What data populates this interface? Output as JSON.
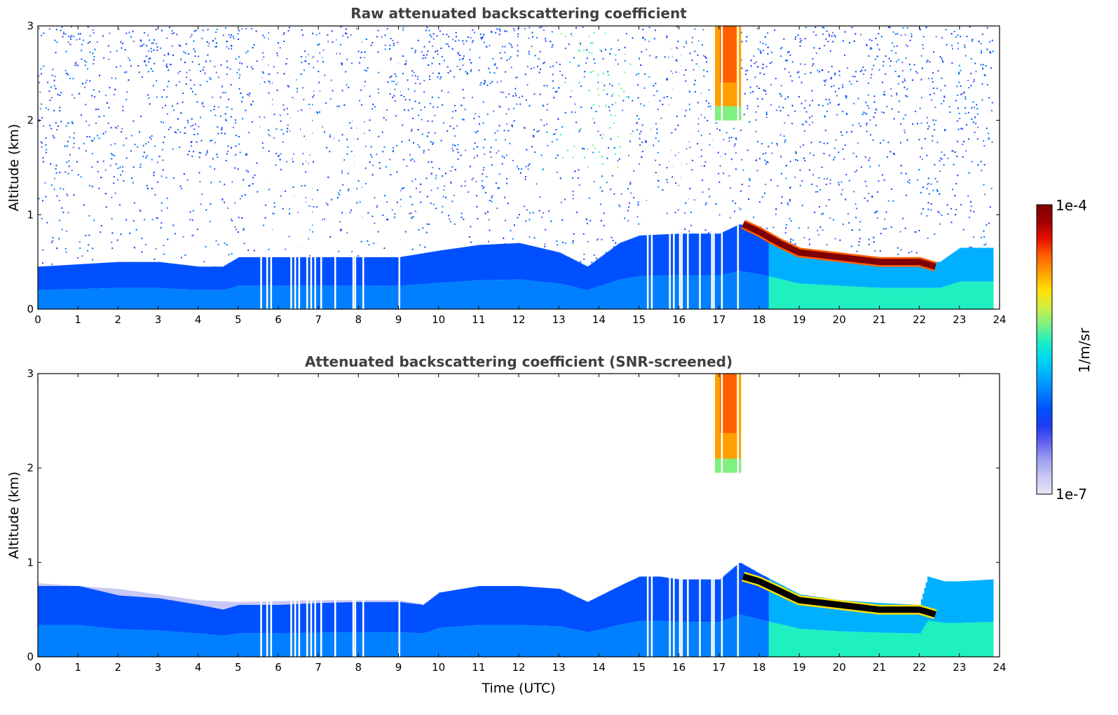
{
  "chart_data": [
    {
      "type": "heatmap",
      "title": "Raw attenuated backscattering coefficient",
      "xlabel": "",
      "ylabel": "Altitude (km)",
      "xlim": [
        0,
        24
      ],
      "ylim": [
        0,
        3
      ],
      "x_ticks": [
        "0",
        "1",
        "2",
        "3",
        "4",
        "5",
        "6",
        "7",
        "8",
        "9",
        "10",
        "11",
        "12",
        "13",
        "14",
        "15",
        "16",
        "17",
        "18",
        "19",
        "20",
        "21",
        "22",
        "23",
        "24"
      ],
      "y_ticks": [
        "0",
        "1",
        "2",
        "3"
      ],
      "boundary_layer_top_km": [
        [
          0,
          0.45
        ],
        [
          2,
          0.5
        ],
        [
          3,
          0.5
        ],
        [
          4,
          0.45
        ],
        [
          4.6,
          0.45
        ],
        [
          5,
          0.55
        ],
        [
          6,
          0.55
        ],
        [
          7,
          0.55
        ],
        [
          8,
          0.55
        ],
        [
          9,
          0.55
        ],
        [
          10,
          0.62
        ],
        [
          11,
          0.68
        ],
        [
          12,
          0.7
        ],
        [
          13,
          0.6
        ],
        [
          13.7,
          0.45
        ],
        [
          14.5,
          0.7
        ],
        [
          15,
          0.78
        ],
        [
          16,
          0.8
        ],
        [
          17,
          0.8
        ],
        [
          17.5,
          0.9
        ],
        [
          18,
          0.82
        ],
        [
          19,
          0.6
        ],
        [
          20,
          0.55
        ],
        [
          21,
          0.5
        ],
        [
          22,
          0.5
        ],
        [
          22.5,
          0.5
        ],
        [
          23,
          0.65
        ],
        [
          23.8,
          0.65
        ]
      ],
      "cloud_layer_km": [
        [
          17.6,
          0.9
        ],
        [
          18,
          0.82
        ],
        [
          18.5,
          0.7
        ],
        [
          19,
          0.6
        ],
        [
          20,
          0.55
        ],
        [
          21,
          0.5
        ],
        [
          22,
          0.5
        ],
        [
          22.4,
          0.45
        ]
      ],
      "aloft_cloud": {
        "x_start": 16.9,
        "x_end": 17.55,
        "y_from": 2.0,
        "y_to": 3.0
      },
      "data_gaps_hours": [
        5.55,
        5.7,
        5.8,
        6.3,
        6.4,
        6.5,
        6.7,
        6.8,
        6.9,
        7.05,
        7.4,
        7.85,
        7.9,
        8.1,
        9.0,
        15.2,
        15.3,
        15.75,
        15.85,
        16.0,
        16.05,
        16.2,
        16.5,
        16.8,
        16.85,
        17.05,
        17.45
      ]
    },
    {
      "type": "heatmap",
      "title": "Attenuated backscattering coefficient (SNR-screened)",
      "xlabel": "Time (UTC)",
      "ylabel": "Altitude (km)",
      "xlim": [
        0,
        24
      ],
      "ylim": [
        0,
        3
      ],
      "x_ticks": [
        "0",
        "1",
        "2",
        "3",
        "4",
        "5",
        "6",
        "7",
        "8",
        "9",
        "10",
        "11",
        "12",
        "13",
        "14",
        "15",
        "16",
        "17",
        "18",
        "19",
        "20",
        "21",
        "22",
        "23",
        "24"
      ],
      "y_ticks": [
        "0",
        "1",
        "2",
        "3"
      ],
      "boundary_layer_top_km": [
        [
          0,
          0.75
        ],
        [
          1,
          0.75
        ],
        [
          2,
          0.65
        ],
        [
          3,
          0.62
        ],
        [
          4,
          0.55
        ],
        [
          4.6,
          0.5
        ],
        [
          5,
          0.55
        ],
        [
          6,
          0.55
        ],
        [
          7,
          0.57
        ],
        [
          8,
          0.58
        ],
        [
          9,
          0.58
        ],
        [
          9.6,
          0.55
        ],
        [
          10,
          0.68
        ],
        [
          11,
          0.75
        ],
        [
          12,
          0.75
        ],
        [
          13,
          0.72
        ],
        [
          13.7,
          0.58
        ],
        [
          14.5,
          0.75
        ],
        [
          15,
          0.85
        ],
        [
          15.5,
          0.85
        ],
        [
          16,
          0.82
        ],
        [
          17,
          0.82
        ],
        [
          17.5,
          1.0
        ],
        [
          18,
          0.88
        ],
        [
          19,
          0.66
        ],
        [
          20,
          0.6
        ],
        [
          21,
          0.57
        ],
        [
          22,
          0.55
        ],
        [
          22.2,
          0.85
        ],
        [
          22.6,
          0.8
        ],
        [
          23,
          0.8
        ],
        [
          23.8,
          0.82
        ]
      ],
      "screened_layer_top_km": [
        [
          0,
          0.78
        ],
        [
          2,
          0.72
        ],
        [
          4,
          0.6
        ],
        [
          5,
          0.58
        ],
        [
          7,
          0.6
        ],
        [
          9,
          0.6
        ],
        [
          9.6,
          0.56
        ]
      ],
      "cloud_layer_km": [
        [
          17.6,
          0.85
        ],
        [
          18,
          0.8
        ],
        [
          18.5,
          0.7
        ],
        [
          19,
          0.6
        ],
        [
          20,
          0.55
        ],
        [
          21,
          0.5
        ],
        [
          22,
          0.5
        ],
        [
          22.4,
          0.45
        ]
      ],
      "aloft_cloud": {
        "x_start": 16.9,
        "x_end": 17.55,
        "y_from": 1.95,
        "y_to": 3.0
      },
      "data_gaps_hours": [
        5.55,
        5.7,
        5.8,
        6.3,
        6.4,
        6.5,
        6.7,
        6.8,
        6.9,
        7.05,
        7.4,
        7.85,
        7.9,
        8.1,
        9.0,
        15.2,
        15.3,
        15.75,
        15.85,
        16.0,
        16.05,
        16.2,
        16.5,
        16.8,
        16.85,
        17.05,
        17.45
      ]
    }
  ],
  "colorbar": {
    "label": "1/m/sr",
    "max_label": "1e-4",
    "min_label": "1e-7",
    "scale": "log",
    "colors": [
      "#e6e6f8",
      "#c8c8f5",
      "#a0a0f0",
      "#6464f0",
      "#1e3cf0",
      "#0050ff",
      "#0080ff",
      "#00b0ff",
      "#00d8f0",
      "#20f0c0",
      "#80f080",
      "#d0f040",
      "#ffe000",
      "#ffa000",
      "#ff6000",
      "#e81000",
      "#a00000",
      "#800000"
    ]
  }
}
